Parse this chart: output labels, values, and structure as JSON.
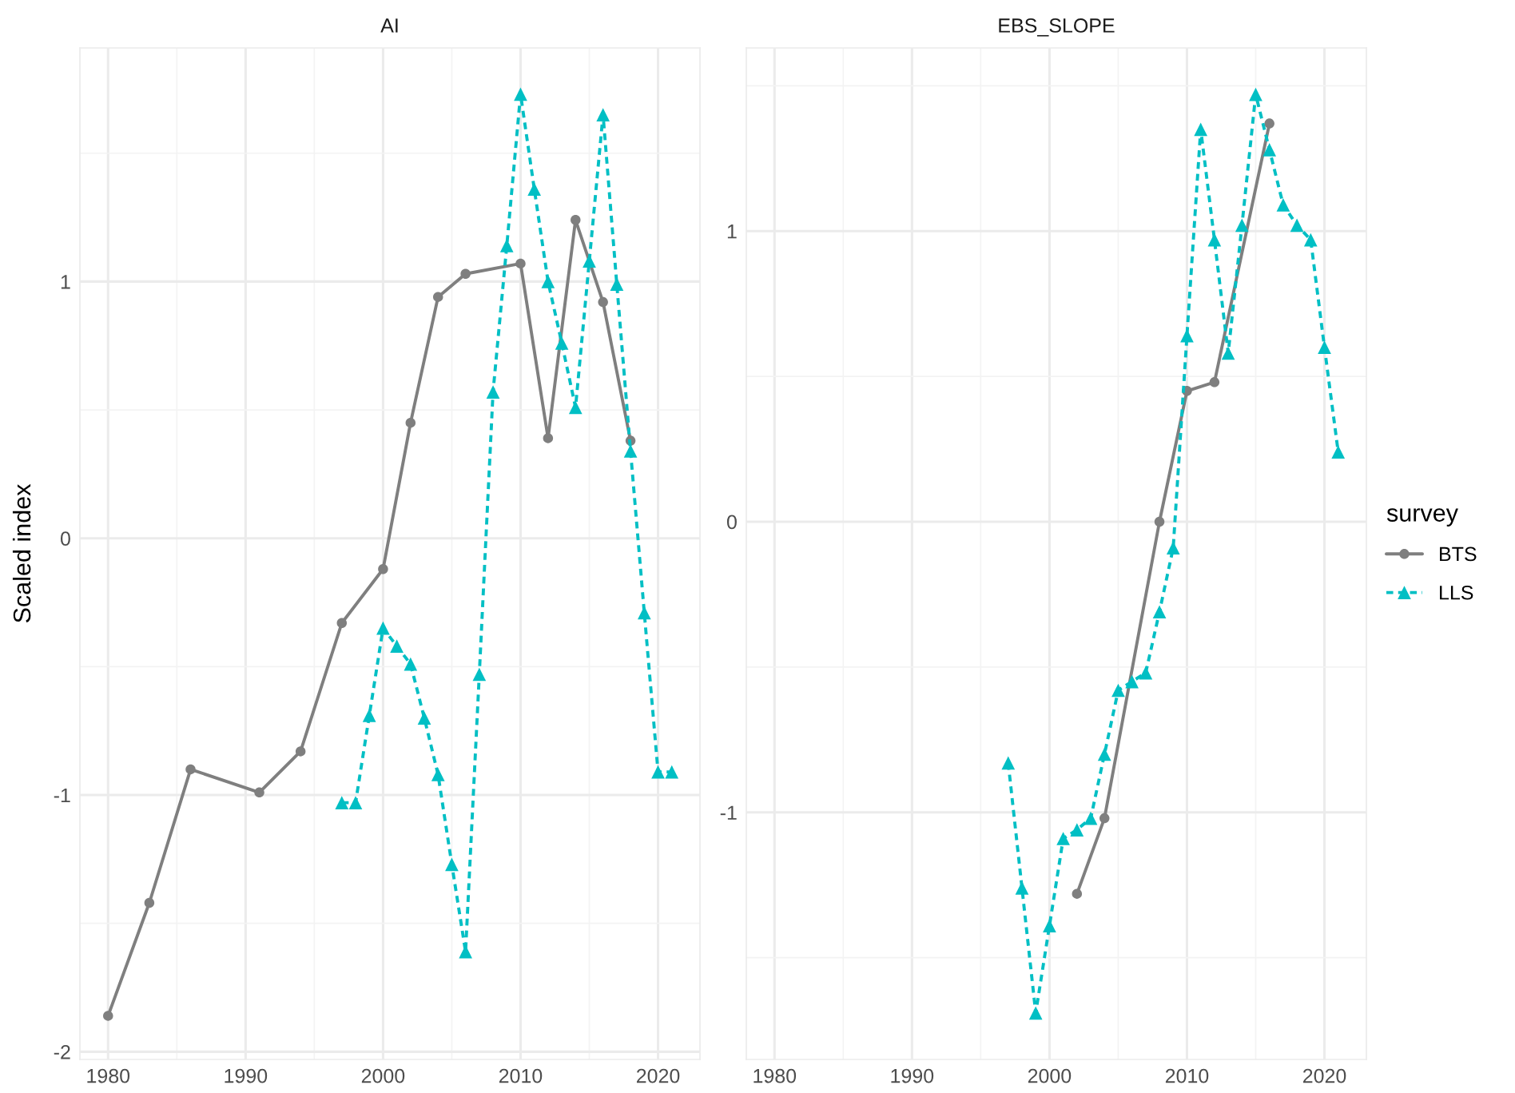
{
  "chart_data": [
    {
      "type": "line",
      "title": "AI",
      "ylabel": "Scaled index",
      "legend": "right",
      "legend_title": "survey",
      "xlim": [
        1977.95,
        2023.05
      ],
      "xticks": [
        1980,
        {
          "value": 1985,
          "label": null
        },
        1990,
        {
          "value": 1995,
          "label": null
        },
        2000,
        {
          "value": 2005,
          "label": null
        },
        2010,
        {
          "value": 2015,
          "label": null
        },
        2020
      ],
      "ylim": [
        -2.03,
        1.91
      ],
      "yticks": [
        -2,
        {
          "value": -1.5,
          "label": null
        },
        -1,
        {
          "value": -0.5,
          "label": null
        },
        0,
        {
          "value": 0.5,
          "label": null
        },
        1,
        {
          "value": 1.5,
          "label": null
        }
      ],
      "grid": true,
      "series": [
        {
          "name": "BTS",
          "color": "#7f7f7f",
          "marker": "circle",
          "line_style": "solid",
          "x": [
            1980,
            1983,
            1986,
            1991,
            1994,
            1997,
            2000,
            2002,
            2004,
            2006,
            2010,
            2012,
            2014,
            2016,
            2018
          ],
          "values": [
            -1.86,
            -1.42,
            -0.9,
            -0.99,
            -0.83,
            -0.33,
            -0.12,
            0.45,
            0.94,
            1.03,
            1.07,
            0.39,
            1.24,
            0.92,
            0.38
          ]
        },
        {
          "name": "LLS",
          "color": "#00bfc4",
          "marker": "triangle",
          "line_style": "dashed",
          "x": [
            1997,
            1998,
            1999,
            2000,
            2001,
            2002,
            2003,
            2004,
            2005,
            2006,
            2007,
            2008,
            2009,
            2010,
            2011,
            2012,
            2013,
            2014,
            2015,
            2016,
            2017,
            2018,
            2019,
            2020,
            2021
          ],
          "values": [
            -1.03,
            -1.03,
            -0.69,
            -0.35,
            -0.42,
            -0.49,
            -0.7,
            -0.92,
            -1.27,
            -1.61,
            -0.53,
            0.57,
            1.14,
            1.73,
            1.36,
            1.0,
            0.76,
            0.51,
            1.08,
            1.65,
            0.99,
            0.34,
            -0.29,
            -0.91,
            -0.91
          ]
        }
      ]
    },
    {
      "type": "line",
      "title": "EBS_SLOPE",
      "legend": "right",
      "xlim": [
        1977.95,
        2023.05
      ],
      "xticks": [
        1980,
        {
          "value": 1985,
          "label": null
        },
        1990,
        {
          "value": 1995,
          "label": null
        },
        2000,
        {
          "value": 2005,
          "label": null
        },
        2010,
        {
          "value": 2015,
          "label": null
        },
        2020
      ],
      "ylim": [
        -1.85,
        1.63
      ],
      "yticks": [
        {
          "value": -1.5,
          "label": null
        },
        -1,
        {
          "value": -0.5,
          "label": null
        },
        0,
        {
          "value": 0.5,
          "label": null
        },
        1,
        {
          "value": 1.5,
          "label": null
        }
      ],
      "grid": true,
      "series": [
        {
          "name": "BTS",
          "color": "#7f7f7f",
          "marker": "circle",
          "line_style": "solid",
          "x": [
            2002,
            2004,
            2008,
            2010,
            2012,
            2016
          ],
          "values": [
            -1.28,
            -1.02,
            0.0,
            0.45,
            0.48,
            1.37
          ]
        },
        {
          "name": "LLS",
          "color": "#00bfc4",
          "marker": "triangle",
          "line_style": "dashed",
          "x": [
            1997,
            1998,
            1999,
            2000,
            2001,
            2002,
            2003,
            2004,
            2005,
            2006,
            2007,
            2008,
            2009,
            2010,
            2011,
            2012,
            2013,
            2014,
            2015,
            2016,
            2017,
            2018,
            2019,
            2020,
            2021
          ],
          "values": [
            -0.83,
            -1.26,
            -1.69,
            -1.39,
            -1.09,
            -1.06,
            -1.02,
            -0.8,
            -0.58,
            -0.55,
            -0.52,
            -0.31,
            -0.09,
            0.64,
            1.35,
            0.97,
            0.58,
            1.02,
            1.47,
            1.28,
            1.09,
            1.02,
            0.97,
            0.6,
            0.24
          ]
        }
      ]
    }
  ]
}
